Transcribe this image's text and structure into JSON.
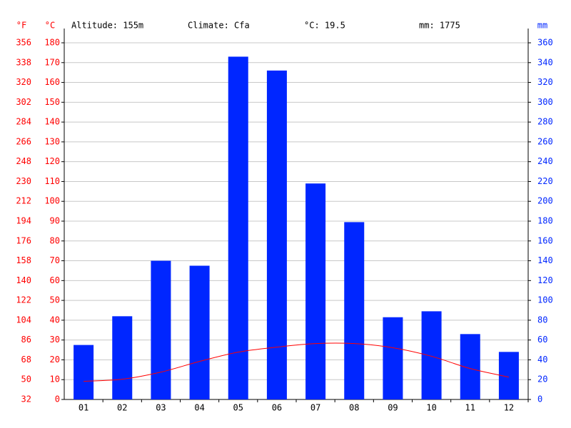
{
  "chart_data": {
    "type": "bar",
    "annotations": [
      "Altitude: 155m",
      "Climate: Cfa",
      "°C: 19.5",
      "mm: 1775"
    ],
    "ylabel": "°C",
    "y2label": "mm",
    "y3label": "°F",
    "categories": [
      "01",
      "02",
      "03",
      "04",
      "05",
      "06",
      "07",
      "08",
      "09",
      "10",
      "11",
      "12"
    ],
    "series": [
      {
        "type": "bar",
        "axis": "y2",
        "color": "#0026ff",
        "values": [
          55,
          84,
          140,
          135,
          346,
          332,
          218,
          179,
          83,
          89,
          66,
          48
        ]
      },
      {
        "type": "line",
        "color": "#ff0000",
        "values": [
          9.2,
          10.2,
          13.8,
          19.2,
          23.9,
          26.4,
          28.2,
          28.2,
          26.1,
          21.8,
          15.6,
          11.3
        ]
      }
    ],
    "ylim": [
      0,
      180
    ],
    "yticks": [
      0,
      10,
      20,
      30,
      40,
      50,
      60,
      70,
      80,
      90,
      100,
      110,
      120,
      130,
      140,
      150,
      160,
      170,
      180
    ],
    "y2lim": [
      0,
      360
    ],
    "y2ticks": [
      0,
      20,
      40,
      60,
      80,
      100,
      120,
      140,
      160,
      180,
      200,
      220,
      240,
      260,
      280,
      300,
      320,
      340,
      360
    ],
    "y3lim": [
      32,
      356
    ],
    "y3ticks": [
      32,
      50,
      68,
      86,
      104,
      122,
      140,
      158,
      176,
      194,
      212,
      230,
      248,
      266,
      284,
      302,
      320,
      338,
      356
    ],
    "grid": true,
    "axis_colors": {
      "y": "#ff0000",
      "y2": "#0026ff",
      "y3": "#ff0000"
    }
  }
}
